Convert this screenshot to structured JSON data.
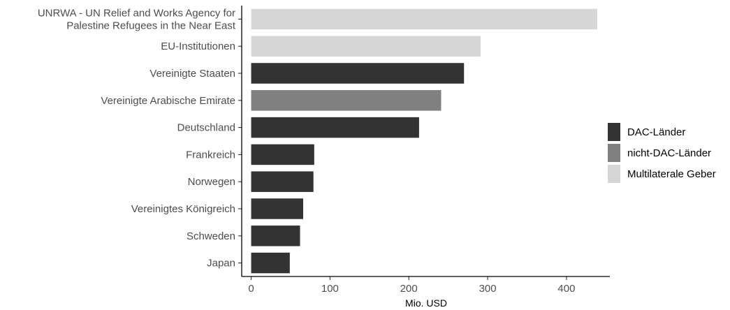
{
  "chart_data": {
    "type": "bar",
    "orientation": "horizontal",
    "xlabel": "Mio. USD",
    "ylabel": "",
    "xlim": [
      -12,
      455
    ],
    "xticks": [
      0,
      100,
      200,
      300,
      400
    ],
    "grid": false,
    "legend_position": "right",
    "categories": [
      [
        "UNRWA - UN Relief and Works Agency for",
        "Palestine Refugees in the Near East"
      ],
      [
        "EU-Institutionen"
      ],
      [
        "Vereinigte Staaten"
      ],
      [
        "Vereinigte Arabische Emirate"
      ],
      [
        "Deutschland"
      ],
      [
        "Frankreich"
      ],
      [
        "Norwegen"
      ],
      [
        "Vereinigtes Königreich"
      ],
      [
        "Schweden"
      ],
      [
        "Japan"
      ]
    ],
    "values": [
      439,
      291,
      270,
      241,
      213,
      80,
      79,
      66,
      62,
      49
    ],
    "groups": [
      "Multilaterale Geber",
      "Multilaterale Geber",
      "DAC-Länder",
      "nicht-DAC-Länder",
      "DAC-Länder",
      "DAC-Länder",
      "DAC-Länder",
      "DAC-Länder",
      "DAC-Länder",
      "DAC-Länder"
    ],
    "legend": [
      {
        "name": "DAC-Länder",
        "color": "#333333"
      },
      {
        "name": "nicht-DAC-Länder",
        "color": "#808080"
      },
      {
        "name": "Multilaterale Geber",
        "color": "#d6d6d6"
      }
    ]
  }
}
